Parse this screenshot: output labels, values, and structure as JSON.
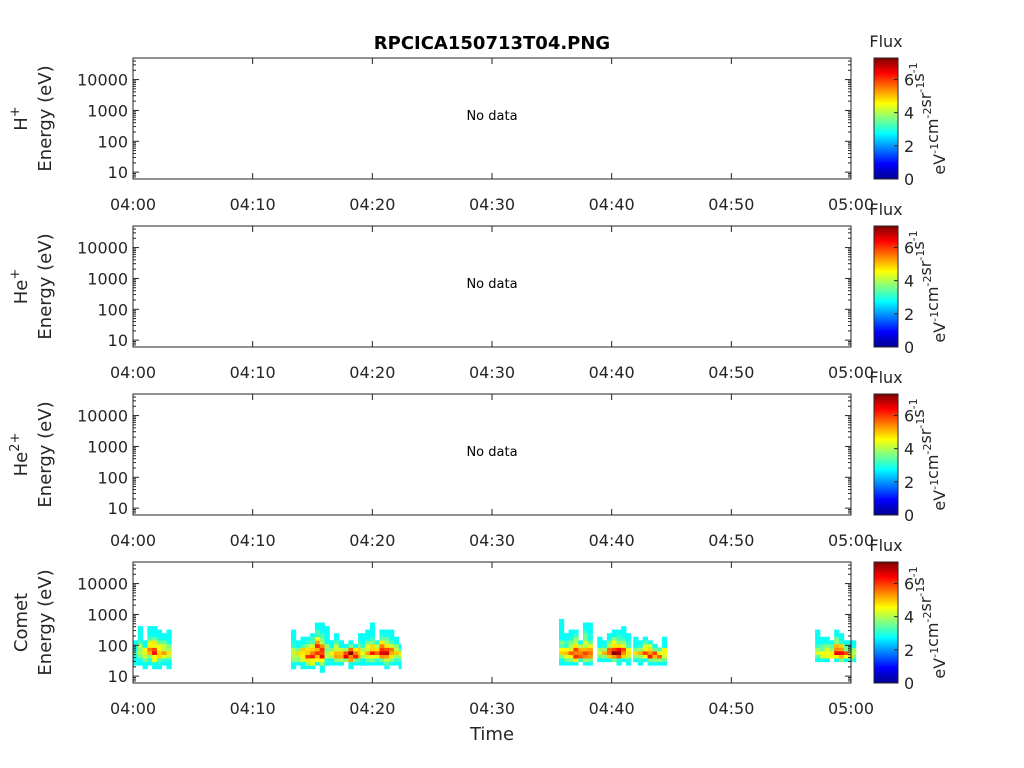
{
  "chart_data": [
    {
      "type": "heatmap",
      "title": "RPCICA150713T04.PNG",
      "species": "H",
      "species_sup": "+",
      "ylabel": "Energy (eV)",
      "xlabel": "",
      "x_ticks": [
        "04:00",
        "04:10",
        "04:20",
        "04:30",
        "04:40",
        "04:50",
        "05:00"
      ],
      "xlim": [
        "04:00",
        "05:00"
      ],
      "y_scale": "log",
      "y_ticks": [
        10,
        100,
        1000,
        10000
      ],
      "y_tick_labels": [
        "10",
        "100",
        "1000",
        "10000"
      ],
      "ylim": [
        6,
        50000
      ],
      "annotation": "No data",
      "colorbar": {
        "title": "Flux",
        "ticks": [
          0,
          2,
          4,
          6
        ],
        "range": [
          0,
          7.3
        ]
      },
      "blobs": []
    },
    {
      "type": "heatmap",
      "title": "",
      "species": "He",
      "species_sup": "+",
      "ylabel": "Energy (eV)",
      "xlabel": "",
      "x_ticks": [
        "04:00",
        "04:10",
        "04:20",
        "04:30",
        "04:40",
        "04:50",
        "05:00"
      ],
      "xlim": [
        "04:00",
        "05:00"
      ],
      "y_scale": "log",
      "y_ticks": [
        10,
        100,
        1000,
        10000
      ],
      "y_tick_labels": [
        "10",
        "100",
        "1000",
        "10000"
      ],
      "ylim": [
        6,
        50000
      ],
      "annotation": "No data",
      "colorbar": {
        "title": "Flux",
        "ticks": [
          0,
          2,
          4,
          6
        ],
        "range": [
          0,
          7.3
        ]
      },
      "blobs": []
    },
    {
      "type": "heatmap",
      "title": "",
      "species": "He",
      "species_sup": "2+",
      "ylabel": "Energy (eV)",
      "xlabel": "",
      "x_ticks": [
        "04:00",
        "04:10",
        "04:20",
        "04:30",
        "04:40",
        "04:50",
        "05:00"
      ],
      "xlim": [
        "04:00",
        "05:00"
      ],
      "y_scale": "log",
      "y_ticks": [
        10,
        100,
        1000,
        10000
      ],
      "y_tick_labels": [
        "10",
        "100",
        "1000",
        "10000"
      ],
      "ylim": [
        6,
        50000
      ],
      "annotation": "No data",
      "colorbar": {
        "title": "Flux",
        "ticks": [
          0,
          2,
          4,
          6
        ],
        "range": [
          0,
          7.3
        ]
      },
      "blobs": []
    },
    {
      "type": "heatmap",
      "title": "",
      "species": "Comet",
      "species_sup": "",
      "ylabel": "Energy (eV)",
      "xlabel": "Time",
      "x_ticks": [
        "04:00",
        "04:10",
        "04:20",
        "04:30",
        "04:40",
        "04:50",
        "05:00"
      ],
      "xlim": [
        "04:00",
        "05:00"
      ],
      "y_scale": "log",
      "y_ticks": [
        10,
        100,
        1000,
        10000
      ],
      "y_tick_labels": [
        "10",
        "100",
        "1000",
        "10000"
      ],
      "ylim": [
        6,
        50000
      ],
      "annotation": "",
      "colorbar": {
        "title": "Flux",
        "ticks": [
          0,
          2,
          4,
          6
        ],
        "range": [
          0,
          7.3
        ]
      },
      "blobs": [
        {
          "t0": 0.0,
          "t1": 3.2,
          "e_lo": 15,
          "e_hi": 550,
          "e_peak": 60,
          "peak_flux": 6.0
        },
        {
          "t0": 13.2,
          "t1": 16.8,
          "e_lo": 12,
          "e_hi": 700,
          "e_peak": 50,
          "peak_flux": 7.0
        },
        {
          "t0": 16.0,
          "t1": 19.6,
          "e_lo": 18,
          "e_hi": 400,
          "e_peak": 50,
          "peak_flux": 7.2
        },
        {
          "t0": 19.0,
          "t1": 22.4,
          "e_lo": 18,
          "e_hi": 550,
          "e_peak": 55,
          "peak_flux": 7.0
        },
        {
          "t0": 35.6,
          "t1": 38.4,
          "e_lo": 20,
          "e_hi": 700,
          "e_peak": 50,
          "peak_flux": 7.0
        },
        {
          "t0": 38.8,
          "t1": 41.6,
          "e_lo": 20,
          "e_hi": 550,
          "e_peak": 55,
          "peak_flux": 7.0
        },
        {
          "t0": 41.8,
          "t1": 44.6,
          "e_lo": 20,
          "e_hi": 250,
          "e_peak": 50,
          "peak_flux": 7.0
        },
        {
          "t0": 57.0,
          "t1": 60.4,
          "e_lo": 25,
          "e_hi": 500,
          "e_peak": 50,
          "peak_flux": 6.8
        }
      ]
    }
  ],
  "colorbar_units": "eV-1 cm-2 sr-1 s-1"
}
